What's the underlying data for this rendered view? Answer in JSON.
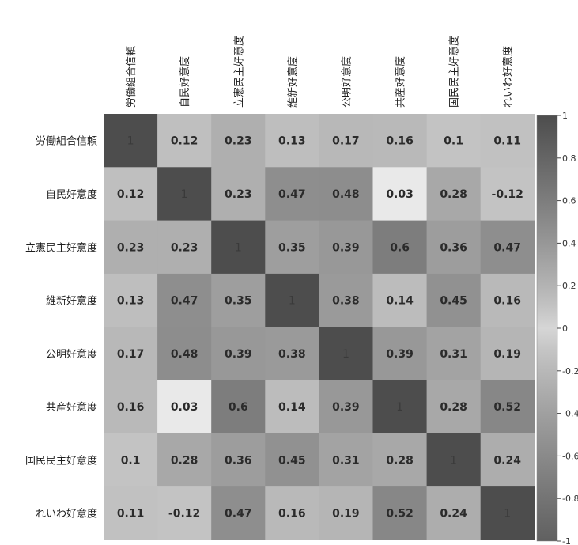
{
  "chart_data": {
    "type": "heatmap",
    "rows": [
      "労働組合信頼",
      "自民好意度",
      "立憲民主好意度",
      "維新好意度",
      "公明好意度",
      "共産好意度",
      "国民民主好意度",
      "れいわ好意度"
    ],
    "columns": [
      "労働組合信頼",
      "自民好意度",
      "立憲民主好意度",
      "維新好意度",
      "公明好意度",
      "共産好意度",
      "国民民主好意度",
      "れいわ好意度"
    ],
    "values": [
      [
        1,
        0.12,
        0.23,
        0.13,
        0.17,
        0.16,
        0.1,
        0.11
      ],
      [
        0.12,
        1,
        0.23,
        0.47,
        0.48,
        0.03,
        0.28,
        -0.12
      ],
      [
        0.23,
        0.23,
        1,
        0.35,
        0.39,
        0.6,
        0.36,
        0.47
      ],
      [
        0.13,
        0.47,
        0.35,
        1,
        0.38,
        0.14,
        0.45,
        0.16
      ],
      [
        0.17,
        0.48,
        0.39,
        0.38,
        1,
        0.39,
        0.31,
        0.19
      ],
      [
        0.16,
        0.03,
        0.6,
        0.14,
        0.39,
        1,
        0.28,
        0.52
      ],
      [
        0.1,
        0.28,
        0.36,
        0.45,
        0.31,
        0.28,
        1,
        0.24
      ],
      [
        0.11,
        -0.12,
        0.47,
        0.16,
        0.19,
        0.52,
        0.24,
        1
      ]
    ],
    "value_labels": [
      [
        "1",
        "0.12",
        "0.23",
        "0.13",
        "0.17",
        "0.16",
        "0.1",
        "0.11"
      ],
      [
        "0.12",
        "1",
        "0.23",
        "0.47",
        "0.48",
        "0.03",
        "0.28",
        "-0.12"
      ],
      [
        "0.23",
        "0.23",
        "1",
        "0.35",
        "0.39",
        "0.6",
        "0.36",
        "0.47"
      ],
      [
        "0.13",
        "0.47",
        "0.35",
        "1",
        "0.38",
        "0.14",
        "0.45",
        "0.16"
      ],
      [
        "0.17",
        "0.48",
        "0.39",
        "0.38",
        "1",
        "0.39",
        "0.31",
        "0.19"
      ],
      [
        "0.16",
        "0.03",
        "0.6",
        "0.14",
        "0.39",
        "1",
        "0.28",
        "0.52"
      ],
      [
        "0.1",
        "0.28",
        "0.36",
        "0.45",
        "0.31",
        "0.28",
        "1",
        "0.24"
      ],
      [
        "0.11",
        "-0.12",
        "0.47",
        "0.16",
        "0.19",
        "0.52",
        "0.24",
        "1"
      ]
    ],
    "colorbar": {
      "min": -1,
      "max": 1,
      "ticks": [
        1,
        0.8,
        0.6,
        0.4,
        0.2,
        0,
        -0.2,
        -0.4,
        -0.6,
        -0.8,
        -1
      ],
      "tick_labels": [
        "1",
        "0.8",
        "0.6",
        "0.4",
        "0.2",
        "0",
        "-0.2",
        "-0.4",
        "-0.6",
        "-0.8",
        "-1"
      ],
      "color_high": "#4d4d4d",
      "color_mid": "#d6d6d6",
      "color_low": "#606060"
    },
    "grid": false
  }
}
